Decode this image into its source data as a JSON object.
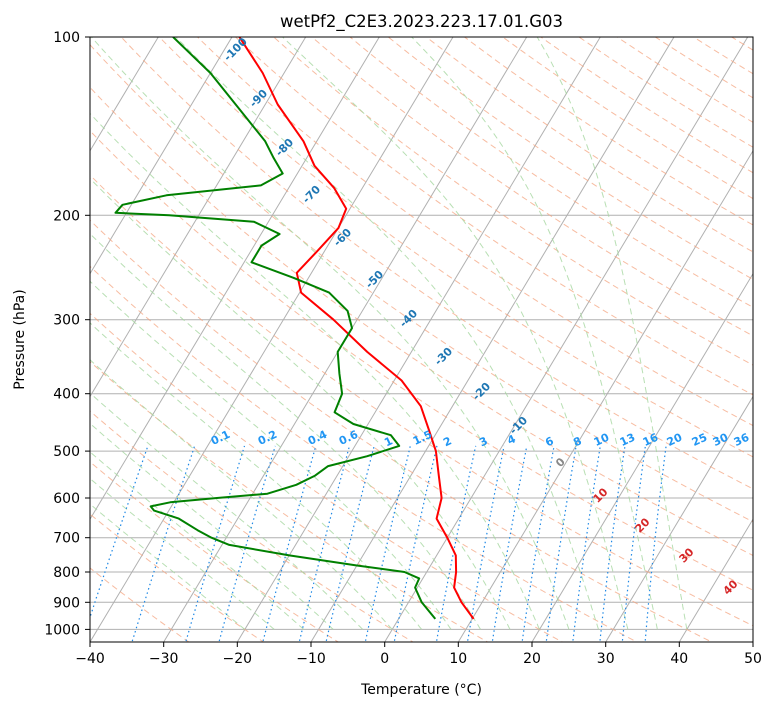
{
  "chart_data": {
    "type": "line",
    "title": "wetPf2_C2E3.2023.223.17.01.G03",
    "xlabel": "Temperature (°C)",
    "ylabel": "Pressure (hPa)",
    "xlim": [
      -40,
      50
    ],
    "ylim": [
      1050,
      100
    ],
    "y_scale": "log",
    "skew": "skew-T",
    "grid": true,
    "x_ticks": [
      -40,
      -30,
      -20,
      -10,
      0,
      10,
      20,
      30,
      40,
      50
    ],
    "y_ticks": [
      100,
      200,
      300,
      400,
      500,
      600,
      700,
      800,
      900,
      1000
    ],
    "colors": {
      "temperature": "#ff0000",
      "dewpoint": "#008000",
      "dry_adiabats": "#f4a582",
      "moist_adiabats": "#a6d7a0",
      "mixing_ratio": "#1e88e5",
      "grid": "#b0b0b0",
      "isotherms": "#b0b0b0"
    },
    "series": [
      {
        "points": [
          {
            "p": 960,
            "t": 10.2
          },
          {
            "p": 900,
            "t": 7.2
          },
          {
            "p": 850,
            "t": 5.0
          },
          {
            "p": 800,
            "t": 4.0
          },
          {
            "p": 750,
            "t": 2.6
          },
          {
            "p": 700,
            "t": 0.0
          },
          {
            "p": 650,
            "t": -3.0
          },
          {
            "p": 600,
            "t": -4.0
          },
          {
            "p": 550,
            "t": -6.2
          },
          {
            "p": 500,
            "t": -8.6
          },
          {
            "p": 460,
            "t": -11.3
          },
          {
            "p": 420,
            "t": -14.3
          },
          {
            "p": 380,
            "t": -19.0
          },
          {
            "p": 340,
            "t": -26.0
          },
          {
            "p": 300,
            "t": -33.2
          },
          {
            "p": 270,
            "t": -39.8
          },
          {
            "p": 250,
            "t": -42.0
          },
          {
            "p": 230,
            "t": -41.0
          },
          {
            "p": 210,
            "t": -40.0
          },
          {
            "p": 195,
            "t": -40.5
          },
          {
            "p": 180,
            "t": -43.8
          },
          {
            "p": 165,
            "t": -48.3
          },
          {
            "p": 150,
            "t": -51.8
          },
          {
            "p": 130,
            "t": -58.3
          },
          {
            "p": 115,
            "t": -62.9
          },
          {
            "p": 100,
            "t": -69.0
          }
        ]
      },
      {
        "points": [
          {
            "p": 960,
            "t": 5.0
          },
          {
            "p": 900,
            "t": 1.8
          },
          {
            "p": 850,
            "t": -0.3
          },
          {
            "p": 820,
            "t": -0.5
          },
          {
            "p": 800,
            "t": -3.0
          },
          {
            "p": 780,
            "t": -10.0
          },
          {
            "p": 750,
            "t": -20.0
          },
          {
            "p": 720,
            "t": -29.0
          },
          {
            "p": 700,
            "t": -32.0
          },
          {
            "p": 680,
            "t": -34.5
          },
          {
            "p": 650,
            "t": -38.0
          },
          {
            "p": 630,
            "t": -42.0
          },
          {
            "p": 620,
            "t": -42.8
          },
          {
            "p": 610,
            "t": -40.5
          },
          {
            "p": 600,
            "t": -34.5
          },
          {
            "p": 590,
            "t": -28.0
          },
          {
            "p": 570,
            "t": -24.8
          },
          {
            "p": 550,
            "t": -23.0
          },
          {
            "p": 530,
            "t": -22.0
          },
          {
            "p": 510,
            "t": -17.5
          },
          {
            "p": 490,
            "t": -14.0
          },
          {
            "p": 470,
            "t": -16.0
          },
          {
            "p": 450,
            "t": -22.0
          },
          {
            "p": 430,
            "t": -25.5
          },
          {
            "p": 400,
            "t": -26.0
          },
          {
            "p": 370,
            "t": -28.0
          },
          {
            "p": 340,
            "t": -30.0
          },
          {
            "p": 310,
            "t": -30.0
          },
          {
            "p": 290,
            "t": -32.0
          },
          {
            "p": 270,
            "t": -36.0
          },
          {
            "p": 255,
            "t": -42.0
          },
          {
            "p": 240,
            "t": -49.0
          },
          {
            "p": 225,
            "t": -49.0
          },
          {
            "p": 215,
            "t": -47.5
          },
          {
            "p": 205,
            "t": -52.0
          },
          {
            "p": 200,
            "t": -64.0
          },
          {
            "p": 198,
            "t": -71.5
          },
          {
            "p": 192,
            "t": -71.2
          },
          {
            "p": 185,
            "t": -66.0
          },
          {
            "p": 178,
            "t": -54.0
          },
          {
            "p": 170,
            "t": -52.0
          },
          {
            "p": 160,
            "t": -54.5
          },
          {
            "p": 150,
            "t": -57.0
          },
          {
            "p": 130,
            "t": -64.0
          },
          {
            "p": 115,
            "t": -70.0
          },
          {
            "p": 100,
            "t": -78.0
          }
        ]
      }
    ],
    "moist_adiabat_labels": [
      "-100",
      "-90",
      "-80",
      "-70",
      "-60",
      "-50",
      "-40",
      "-30",
      "-20",
      "-10"
    ],
    "mixing_ratio_labels": [
      "0.1",
      "0.2",
      "0.4",
      "0.6",
      "1",
      "1.5",
      "2",
      "3",
      "4",
      "6",
      "8",
      "10",
      "13",
      "16",
      "20",
      "25",
      "30",
      "36"
    ],
    "dry_adiabat_labels": [
      "0",
      "10",
      "20",
      "30",
      "40"
    ]
  }
}
